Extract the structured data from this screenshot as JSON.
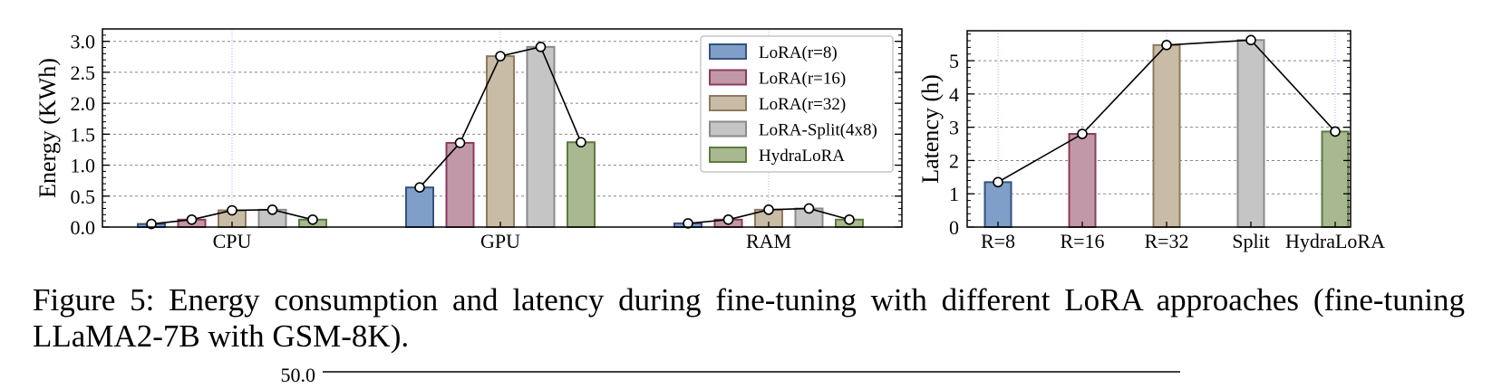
{
  "caption": {
    "text": "Figure 5:  Energy consumption and latency during fine-tuning with different LoRA approaches (fine-tuning LLaMA2-7B with GSM-8K)."
  },
  "chart_data": [
    {
      "type": "bar",
      "ylabel": "Energy (KWh)",
      "categories": [
        "CPU",
        "GPU",
        "RAM"
      ],
      "ylim": [
        0,
        3.2
      ],
      "yticks": [
        "0.0",
        "0.5",
        "1.0",
        "1.5",
        "2.0",
        "2.5",
        "3.0"
      ],
      "grid": true,
      "legend_position": "upper-right",
      "overlay_line": true,
      "series": [
        {
          "name": "LoRA(r=8)",
          "values": [
            0.05,
            0.64,
            0.06
          ],
          "color": "#7f9fc9",
          "edge": "#36527f"
        },
        {
          "name": "LoRA(r=16)",
          "values": [
            0.12,
            1.36,
            0.12
          ],
          "color": "#c198a8",
          "edge": "#8b3b5d"
        },
        {
          "name": "LoRA(r=32)",
          "values": [
            0.27,
            2.76,
            0.28
          ],
          "color": "#c9bca6",
          "edge": "#8e7a5e"
        },
        {
          "name": "LoRA-Split(4x8)",
          "values": [
            0.28,
            2.91,
            0.3
          ],
          "color": "#c5c5c5",
          "edge": "#8a8a8a"
        },
        {
          "name": "HydraLoRA",
          "values": [
            0.12,
            1.37,
            0.12
          ],
          "color": "#a8b991",
          "edge": "#5e7a3e"
        }
      ]
    },
    {
      "type": "bar",
      "ylabel": "Latency (h)",
      "categories": [
        "R=8",
        "R=16",
        "R=32",
        "Split",
        "HydraLoRA"
      ],
      "values": [
        1.35,
        2.8,
        5.47,
        5.62,
        2.87
      ],
      "ylim": [
        0,
        5.9
      ],
      "yticks": [
        "0",
        "1",
        "2",
        "3",
        "4",
        "5"
      ],
      "grid": true,
      "overlay_line": true,
      "colors": [
        "#7f9fc9",
        "#c198a8",
        "#c9bca6",
        "#c5c5c5",
        "#a8b991"
      ],
      "edges": [
        "#36527f",
        "#8b3b5d",
        "#8e7a5e",
        "#8a8a8a",
        "#5e7a3e"
      ]
    }
  ],
  "partial_next_figure": {
    "visible_tick": "50.0"
  }
}
